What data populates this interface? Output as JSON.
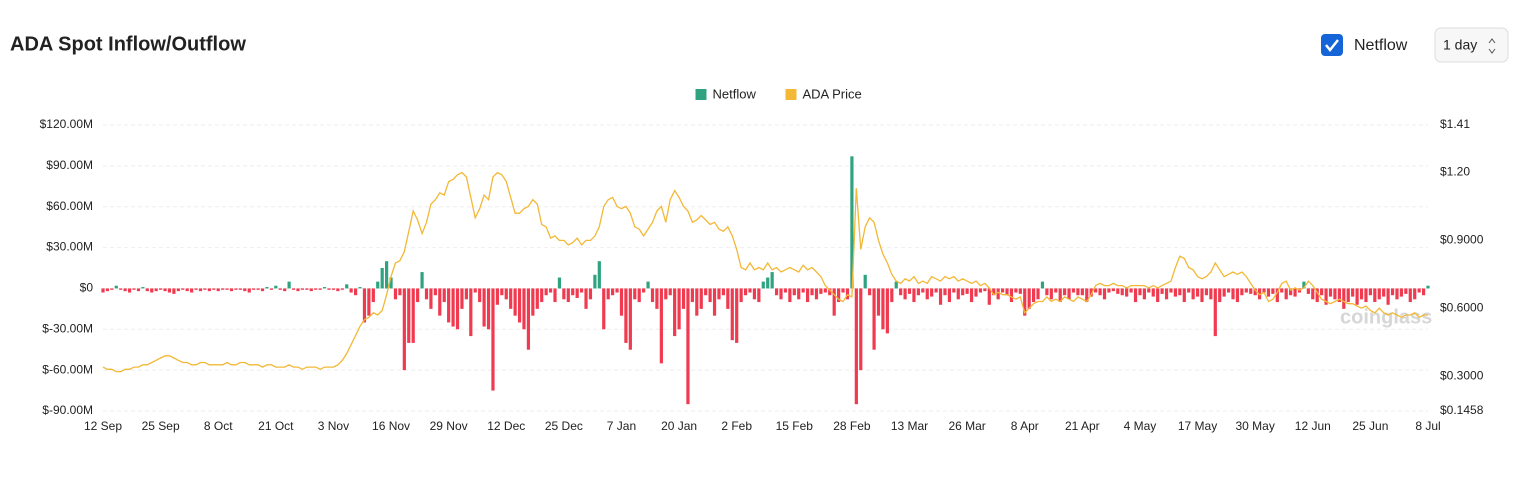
{
  "header": {
    "title": "ADA Spot Inflow/Outflow",
    "toggle": "Netflow",
    "interval": "1 day"
  },
  "chart_data": {
    "type": "bar-line",
    "watermark": "coinglass",
    "categories": [
      "12 Sep",
      null,
      null,
      null,
      null,
      null,
      null,
      null,
      null,
      null,
      null,
      null,
      null,
      "25 Sep",
      null,
      null,
      null,
      null,
      null,
      null,
      null,
      null,
      null,
      null,
      null,
      null,
      "8 Oct",
      null,
      null,
      null,
      null,
      null,
      null,
      null,
      null,
      null,
      null,
      null,
      null,
      "21 Oct",
      null,
      null,
      null,
      null,
      null,
      null,
      null,
      null,
      null,
      null,
      null,
      null,
      "3 Nov",
      null,
      null,
      null,
      null,
      null,
      null,
      null,
      null,
      null,
      null,
      null,
      null,
      "16 Nov",
      null,
      null,
      null,
      null,
      null,
      null,
      null,
      null,
      null,
      null,
      null,
      null,
      "29 Nov",
      null,
      null,
      null,
      null,
      null,
      null,
      null,
      null,
      null,
      null,
      null,
      null,
      "12 Dec",
      null,
      null,
      null,
      null,
      null,
      null,
      null,
      null,
      null,
      null,
      null,
      null,
      "25 Dec",
      null,
      null,
      null,
      null,
      null,
      null,
      null,
      null,
      null,
      null,
      null,
      null,
      "7 Jan",
      null,
      null,
      null,
      null,
      null,
      null,
      null,
      null,
      null,
      null,
      null,
      null,
      "20 Jan",
      null,
      null,
      null,
      null,
      null,
      null,
      null,
      null,
      null,
      null,
      null,
      null,
      "2 Feb",
      null,
      null,
      null,
      null,
      null,
      null,
      null,
      null,
      null,
      null,
      null,
      null,
      "15 Feb",
      null,
      null,
      null,
      null,
      null,
      null,
      null,
      null,
      null,
      null,
      null,
      null,
      "28 Feb",
      null,
      null,
      null,
      null,
      null,
      null,
      null,
      null,
      null,
      null,
      null,
      null,
      "13 Mar",
      null,
      null,
      null,
      null,
      null,
      null,
      null,
      null,
      null,
      null,
      null,
      null,
      "26 Mar",
      null,
      null,
      null,
      null,
      null,
      null,
      null,
      null,
      null,
      null,
      null,
      null,
      "8 Apr",
      null,
      null,
      null,
      null,
      null,
      null,
      null,
      null,
      null,
      null,
      null,
      null,
      "21 Apr",
      null,
      null,
      null,
      null,
      null,
      null,
      null,
      null,
      null,
      null,
      null,
      null,
      "4 May",
      null,
      null,
      null,
      null,
      null,
      null,
      null,
      null,
      null,
      null,
      null,
      null,
      "17 May",
      null,
      null,
      null,
      null,
      null,
      null,
      null,
      null,
      null,
      null,
      null,
      null,
      "30 May",
      null,
      null,
      null,
      null,
      null,
      null,
      null,
      null,
      null,
      null,
      null,
      null,
      "12 Jun",
      null,
      null,
      null,
      null,
      null,
      null,
      null,
      null,
      null,
      null,
      null,
      null,
      "25 Jun",
      null,
      null,
      null,
      null,
      null,
      null,
      null,
      null,
      null,
      null,
      null,
      null,
      "8 Jul"
    ],
    "series": [
      {
        "name": "Netflow",
        "color": "#2fa37f",
        "negative_color": "#f03a4f",
        "values": [
          -3,
          -2,
          -1,
          2,
          -1,
          -2,
          -3,
          -1,
          -2,
          1,
          -2,
          -3,
          -2,
          -1,
          -2,
          -3,
          -4,
          -2,
          -1,
          -2,
          -3,
          -1,
          -2,
          -1,
          -2,
          -1,
          -2,
          -1,
          -1,
          -2,
          -1,
          -1,
          -2,
          -3,
          -1,
          -1,
          -2,
          1,
          -1,
          2,
          -1,
          -2,
          5,
          -1,
          -2,
          -1,
          -1,
          -2,
          -1,
          -1,
          1,
          -1,
          -1,
          -2,
          -1,
          3,
          -3,
          -5,
          1,
          -25,
          -20,
          -10,
          5,
          15,
          20,
          8,
          -8,
          -5,
          -60,
          -40,
          -40,
          -10,
          12,
          -8,
          -15,
          -5,
          -20,
          -10,
          -25,
          -28,
          -30,
          -15,
          -8,
          -35,
          -3,
          -10,
          -28,
          -30,
          -75,
          -12,
          -5,
          -8,
          -15,
          -20,
          -25,
          -30,
          -45,
          -20,
          -15,
          -10,
          -5,
          -3,
          -10,
          8,
          -8,
          -10,
          -5,
          -7,
          -3,
          -15,
          -8,
          10,
          20,
          -30,
          -8,
          -5,
          -3,
          -20,
          -40,
          -45,
          -8,
          -10,
          -3,
          5,
          -10,
          -15,
          -55,
          -8,
          -5,
          -35,
          -30,
          -15,
          -85,
          -10,
          -20,
          -15,
          -5,
          -10,
          -20,
          -8,
          -5,
          -15,
          -38,
          -40,
          -10,
          -5,
          -3,
          -8,
          -10,
          5,
          8,
          12,
          -5,
          -8,
          -3,
          -10,
          -5,
          -8,
          -3,
          -10,
          -5,
          -8,
          -4,
          -3,
          -5,
          -20,
          -10,
          -3,
          -8,
          97,
          -85,
          -60,
          10,
          -5,
          -45,
          -20,
          -30,
          -33,
          -10,
          5,
          -5,
          -8,
          -4,
          -10,
          -5,
          -3,
          -8,
          -6,
          -3,
          -12,
          -5,
          -10,
          -3,
          -8,
          -5,
          -4,
          -10,
          -6,
          -3,
          -2,
          -12,
          -5,
          -8,
          -3,
          -5,
          -10,
          -3,
          -4,
          -20,
          -15,
          -10,
          -8,
          5,
          -5,
          -8,
          -3,
          -10,
          -5,
          -8,
          -3,
          -5,
          -5,
          -10,
          -6,
          -3,
          -5,
          -8,
          -3,
          -2,
          -4,
          -5,
          -6,
          -3,
          -10,
          -5,
          -8,
          -3,
          -6,
          -10,
          -4,
          -8,
          -3,
          -6,
          -5,
          -10,
          -3,
          -8,
          -6,
          -10,
          -5,
          -8,
          -35,
          -10,
          -6,
          -3,
          -8,
          -10,
          -5,
          -3,
          -4,
          -5,
          -8,
          -3,
          -6,
          -4,
          -10,
          -3,
          -8,
          -5,
          -6,
          -3,
          5,
          -4,
          -8,
          -10,
          -5,
          -12,
          -6,
          -8,
          -10,
          -15,
          -10,
          -6,
          -12,
          -8,
          -10,
          -5,
          -10,
          -8,
          -6,
          -12,
          -5,
          -8,
          -6,
          -4,
          -10,
          -8,
          -3,
          -5,
          2
        ]
      },
      {
        "name": "ADA Price",
        "color": "#f2b836",
        "axis": "y2",
        "values": [
          0.34,
          0.33,
          0.33,
          0.32,
          0.32,
          0.33,
          0.33,
          0.34,
          0.34,
          0.35,
          0.35,
          0.36,
          0.37,
          0.38,
          0.39,
          0.39,
          0.38,
          0.37,
          0.36,
          0.36,
          0.35,
          0.35,
          0.36,
          0.36,
          0.35,
          0.35,
          0.35,
          0.35,
          0.36,
          0.35,
          0.35,
          0.36,
          0.36,
          0.35,
          0.35,
          0.35,
          0.34,
          0.35,
          0.35,
          0.34,
          0.34,
          0.34,
          0.35,
          0.34,
          0.34,
          0.33,
          0.34,
          0.34,
          0.34,
          0.33,
          0.34,
          0.34,
          0.34,
          0.35,
          0.37,
          0.4,
          0.44,
          0.48,
          0.52,
          0.55,
          0.56,
          0.58,
          0.57,
          0.59,
          0.66,
          0.74,
          0.8,
          0.81,
          0.85,
          0.94,
          1.03,
          0.99,
          0.93,
          0.98,
          1.06,
          1.08,
          1.11,
          1.1,
          1.16,
          1.17,
          1.19,
          1.2,
          1.18,
          1.09,
          1.0,
          1.04,
          1.1,
          1.08,
          1.18,
          1.2,
          1.19,
          1.16,
          1.09,
          1.02,
          1.02,
          1.04,
          1.05,
          1.08,
          1.06,
          0.97,
          0.96,
          0.91,
          0.92,
          0.9,
          0.9,
          0.88,
          0.89,
          0.91,
          0.88,
          0.9,
          0.9,
          0.92,
          0.96,
          1.05,
          1.08,
          1.09,
          1.05,
          1.04,
          1.05,
          1.02,
          0.96,
          0.95,
          0.92,
          0.95,
          0.98,
          1.03,
          1.05,
          0.98,
          1.08,
          1.12,
          1.09,
          1.05,
          1.03,
          0.98,
          0.99,
          1.01,
          0.99,
          0.97,
          0.98,
          0.95,
          0.94,
          0.96,
          0.92,
          0.86,
          0.78,
          0.77,
          0.8,
          0.77,
          0.78,
          0.77,
          0.8,
          0.77,
          0.78,
          0.76,
          0.77,
          0.78,
          0.77,
          0.76,
          0.79,
          0.77,
          0.78,
          0.76,
          0.74,
          0.7,
          0.68,
          0.66,
          0.64,
          0.63,
          0.66,
          0.65,
          1.13,
          0.86,
          0.96,
          1.0,
          0.98,
          0.9,
          0.84,
          0.8,
          0.75,
          0.72,
          0.71,
          0.73,
          0.72,
          0.74,
          0.71,
          0.72,
          0.71,
          0.74,
          0.73,
          0.72,
          0.74,
          0.73,
          0.74,
          0.72,
          0.73,
          0.72,
          0.71,
          0.72,
          0.7,
          0.71,
          0.69,
          0.66,
          0.67,
          0.66,
          0.66,
          0.65,
          0.64,
          0.65,
          0.58,
          0.6,
          0.62,
          0.63,
          0.63,
          0.65,
          0.63,
          0.64,
          0.63,
          0.65,
          0.64,
          0.63,
          0.65,
          0.64,
          0.63,
          0.66,
          0.7,
          0.71,
          0.7,
          0.7,
          0.71,
          0.7,
          0.7,
          0.69,
          0.7,
          0.7,
          0.7,
          0.7,
          0.69,
          0.7,
          0.69,
          0.7,
          0.71,
          0.72,
          0.78,
          0.83,
          0.82,
          0.78,
          0.77,
          0.74,
          0.73,
          0.74,
          0.76,
          0.8,
          0.77,
          0.74,
          0.75,
          0.76,
          0.75,
          0.76,
          0.74,
          0.71,
          0.68,
          0.66,
          0.67,
          0.63,
          0.64,
          0.67,
          0.71,
          0.72,
          0.68,
          0.69,
          0.68,
          0.69,
          0.72,
          0.7,
          0.67,
          0.64,
          0.63,
          0.62,
          0.63,
          0.64,
          0.63,
          0.62,
          0.62,
          0.61,
          0.6,
          0.61,
          0.59,
          0.58,
          0.6,
          0.58,
          0.57,
          0.58,
          0.57,
          0.56,
          0.57,
          0.57,
          0.58,
          0.56,
          0.57,
          0.57
        ]
      }
    ],
    "ylim": [
      -90,
      120
    ],
    "yticks": [
      {
        "value": -90,
        "label": "$-90.00M"
      },
      {
        "value": -60,
        "label": "$-60.00M"
      },
      {
        "value": -30,
        "label": "$-30.00M"
      },
      {
        "value": 0,
        "label": "$0"
      },
      {
        "value": 30,
        "label": "$30.00M"
      },
      {
        "value": 60,
        "label": "$60.00M"
      },
      {
        "value": 90,
        "label": "$90.00M"
      },
      {
        "value": 120,
        "label": "$120.00M"
      }
    ],
    "y2lim": [
      0.1458,
      1.41
    ],
    "y2ticks": [
      {
        "value": 0.1458,
        "label": "$0.1458"
      },
      {
        "value": 0.3,
        "label": "$0.3000"
      },
      {
        "value": 0.6,
        "label": "$0.6000"
      },
      {
        "value": 0.9,
        "label": "$0.9000"
      },
      {
        "value": 1.2,
        "label": "$1.20"
      },
      {
        "value": 1.41,
        "label": "$1.41"
      }
    ],
    "grid": true,
    "legend": "top"
  }
}
